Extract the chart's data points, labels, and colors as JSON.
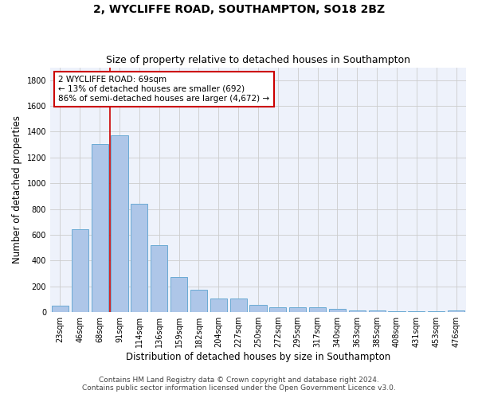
{
  "title": "2, WYCLIFFE ROAD, SOUTHAMPTON, SO18 2BZ",
  "subtitle": "Size of property relative to detached houses in Southampton",
  "xlabel": "Distribution of detached houses by size in Southampton",
  "ylabel": "Number of detached properties",
  "categories": [
    "23sqm",
    "46sqm",
    "68sqm",
    "91sqm",
    "114sqm",
    "136sqm",
    "159sqm",
    "182sqm",
    "204sqm",
    "227sqm",
    "250sqm",
    "272sqm",
    "295sqm",
    "317sqm",
    "340sqm",
    "363sqm",
    "385sqm",
    "408sqm",
    "431sqm",
    "453sqm",
    "476sqm"
  ],
  "values": [
    50,
    640,
    1305,
    1375,
    840,
    520,
    275,
    175,
    105,
    105,
    58,
    40,
    38,
    35,
    27,
    15,
    15,
    5,
    5,
    5,
    15
  ],
  "bar_color": "#aec6e8",
  "bar_edge_color": "#6aaad4",
  "vline_x": 2.5,
  "vline_color": "#cc0000",
  "annotation_text": "2 WYCLIFFE ROAD: 69sqm\n← 13% of detached houses are smaller (692)\n86% of semi-detached houses are larger (4,672) →",
  "annotation_box_color": "#ffffff",
  "annotation_box_edge": "#cc0000",
  "ylim": [
    0,
    1900
  ],
  "yticks": [
    0,
    200,
    400,
    600,
    800,
    1000,
    1200,
    1400,
    1600,
    1800
  ],
  "grid_color": "#cccccc",
  "bg_color": "#eef2fb",
  "footer_line1": "Contains HM Land Registry data © Crown copyright and database right 2024.",
  "footer_line2": "Contains public sector information licensed under the Open Government Licence v3.0.",
  "title_fontsize": 10,
  "subtitle_fontsize": 9,
  "xlabel_fontsize": 8.5,
  "ylabel_fontsize": 8.5,
  "tick_fontsize": 7,
  "footer_fontsize": 6.5,
  "annot_fontsize": 7.5
}
